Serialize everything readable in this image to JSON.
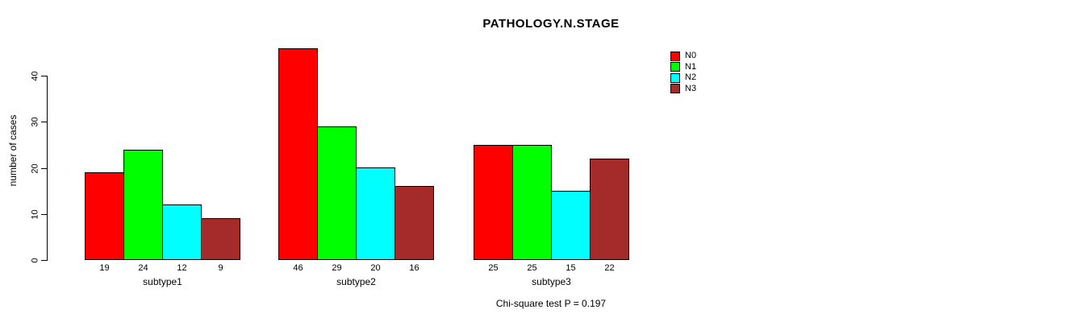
{
  "title": "PATHOLOGY.N.STAGE",
  "chart_data": {
    "type": "bar",
    "title": "PATHOLOGY.N.STAGE",
    "xlabel": "",
    "ylabel": "number of cases",
    "categories": [
      "subtype1",
      "subtype2",
      "subtype3"
    ],
    "series": [
      {
        "name": "N0",
        "color": "#FF0000",
        "values": [
          19,
          46,
          25
        ]
      },
      {
        "name": "N1",
        "color": "#00FF00",
        "values": [
          24,
          29,
          25
        ]
      },
      {
        "name": "N2",
        "color": "#00FFFF",
        "values": [
          12,
          20,
          15
        ]
      },
      {
        "name": "N3",
        "color": "#A52A2A",
        "values": [
          9,
          16,
          22
        ]
      }
    ],
    "yticks": [
      0,
      10,
      20,
      30,
      40
    ],
    "ylim": [
      0,
      46
    ],
    "grid": false,
    "legend_position": "top-right",
    "bar_value_labels_shown": true,
    "annotation": "Chi-square test P = 0.197"
  }
}
